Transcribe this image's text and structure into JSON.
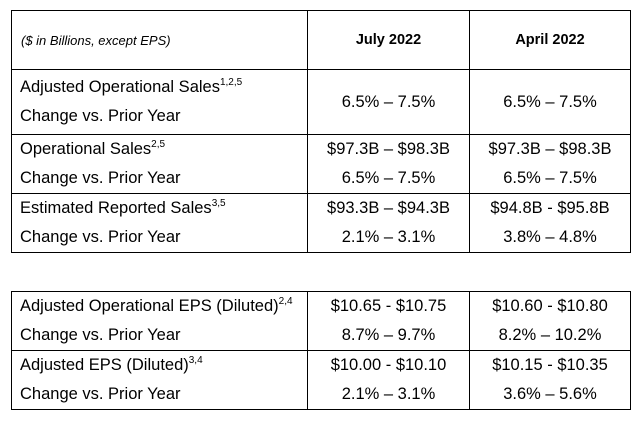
{
  "header": {
    "label": "($ in Billions, except EPS)",
    "col1": "July 2022",
    "col2": "April 2022"
  },
  "table1": [
    {
      "label": "Adjusted Operational Sales",
      "sup": "1,2,5",
      "sublabel": "Change vs. Prior Year",
      "july": [
        "6.5% – 7.5%"
      ],
      "april": [
        "6.5% – 7.5%"
      ]
    },
    {
      "label": "Operational Sales",
      "sup": "2,5",
      "sublabel": "Change vs. Prior Year",
      "july": [
        "$97.3B – $98.3B",
        "6.5% – 7.5%"
      ],
      "april": [
        "$97.3B – $98.3B",
        "6.5% – 7.5%"
      ]
    },
    {
      "label": "Estimated Reported Sales",
      "sup": "3,5",
      "sublabel": "Change vs. Prior Year",
      "july": [
        "$93.3B – $94.3B",
        "2.1% – 3.1%"
      ],
      "april": [
        "$94.8B - $95.8B",
        "3.8% – 4.8%"
      ]
    }
  ],
  "table2": [
    {
      "label": "Adjusted Operational EPS (Diluted)",
      "sup": "2,4",
      "sublabel": "Change vs. Prior Year",
      "july": [
        "$10.65 - $10.75",
        "8.7% – 9.7%"
      ],
      "april": [
        "$10.60 - $10.80",
        "8.2% – 10.2%"
      ]
    },
    {
      "label": "Adjusted EPS (Diluted)",
      "sup": "3,4",
      "sublabel": "Change vs. Prior Year",
      "july": [
        "$10.00 - $10.10",
        "2.1% – 3.1%"
      ],
      "april": [
        "$10.15 - $10.35",
        "3.6% – 5.6%"
      ]
    }
  ]
}
